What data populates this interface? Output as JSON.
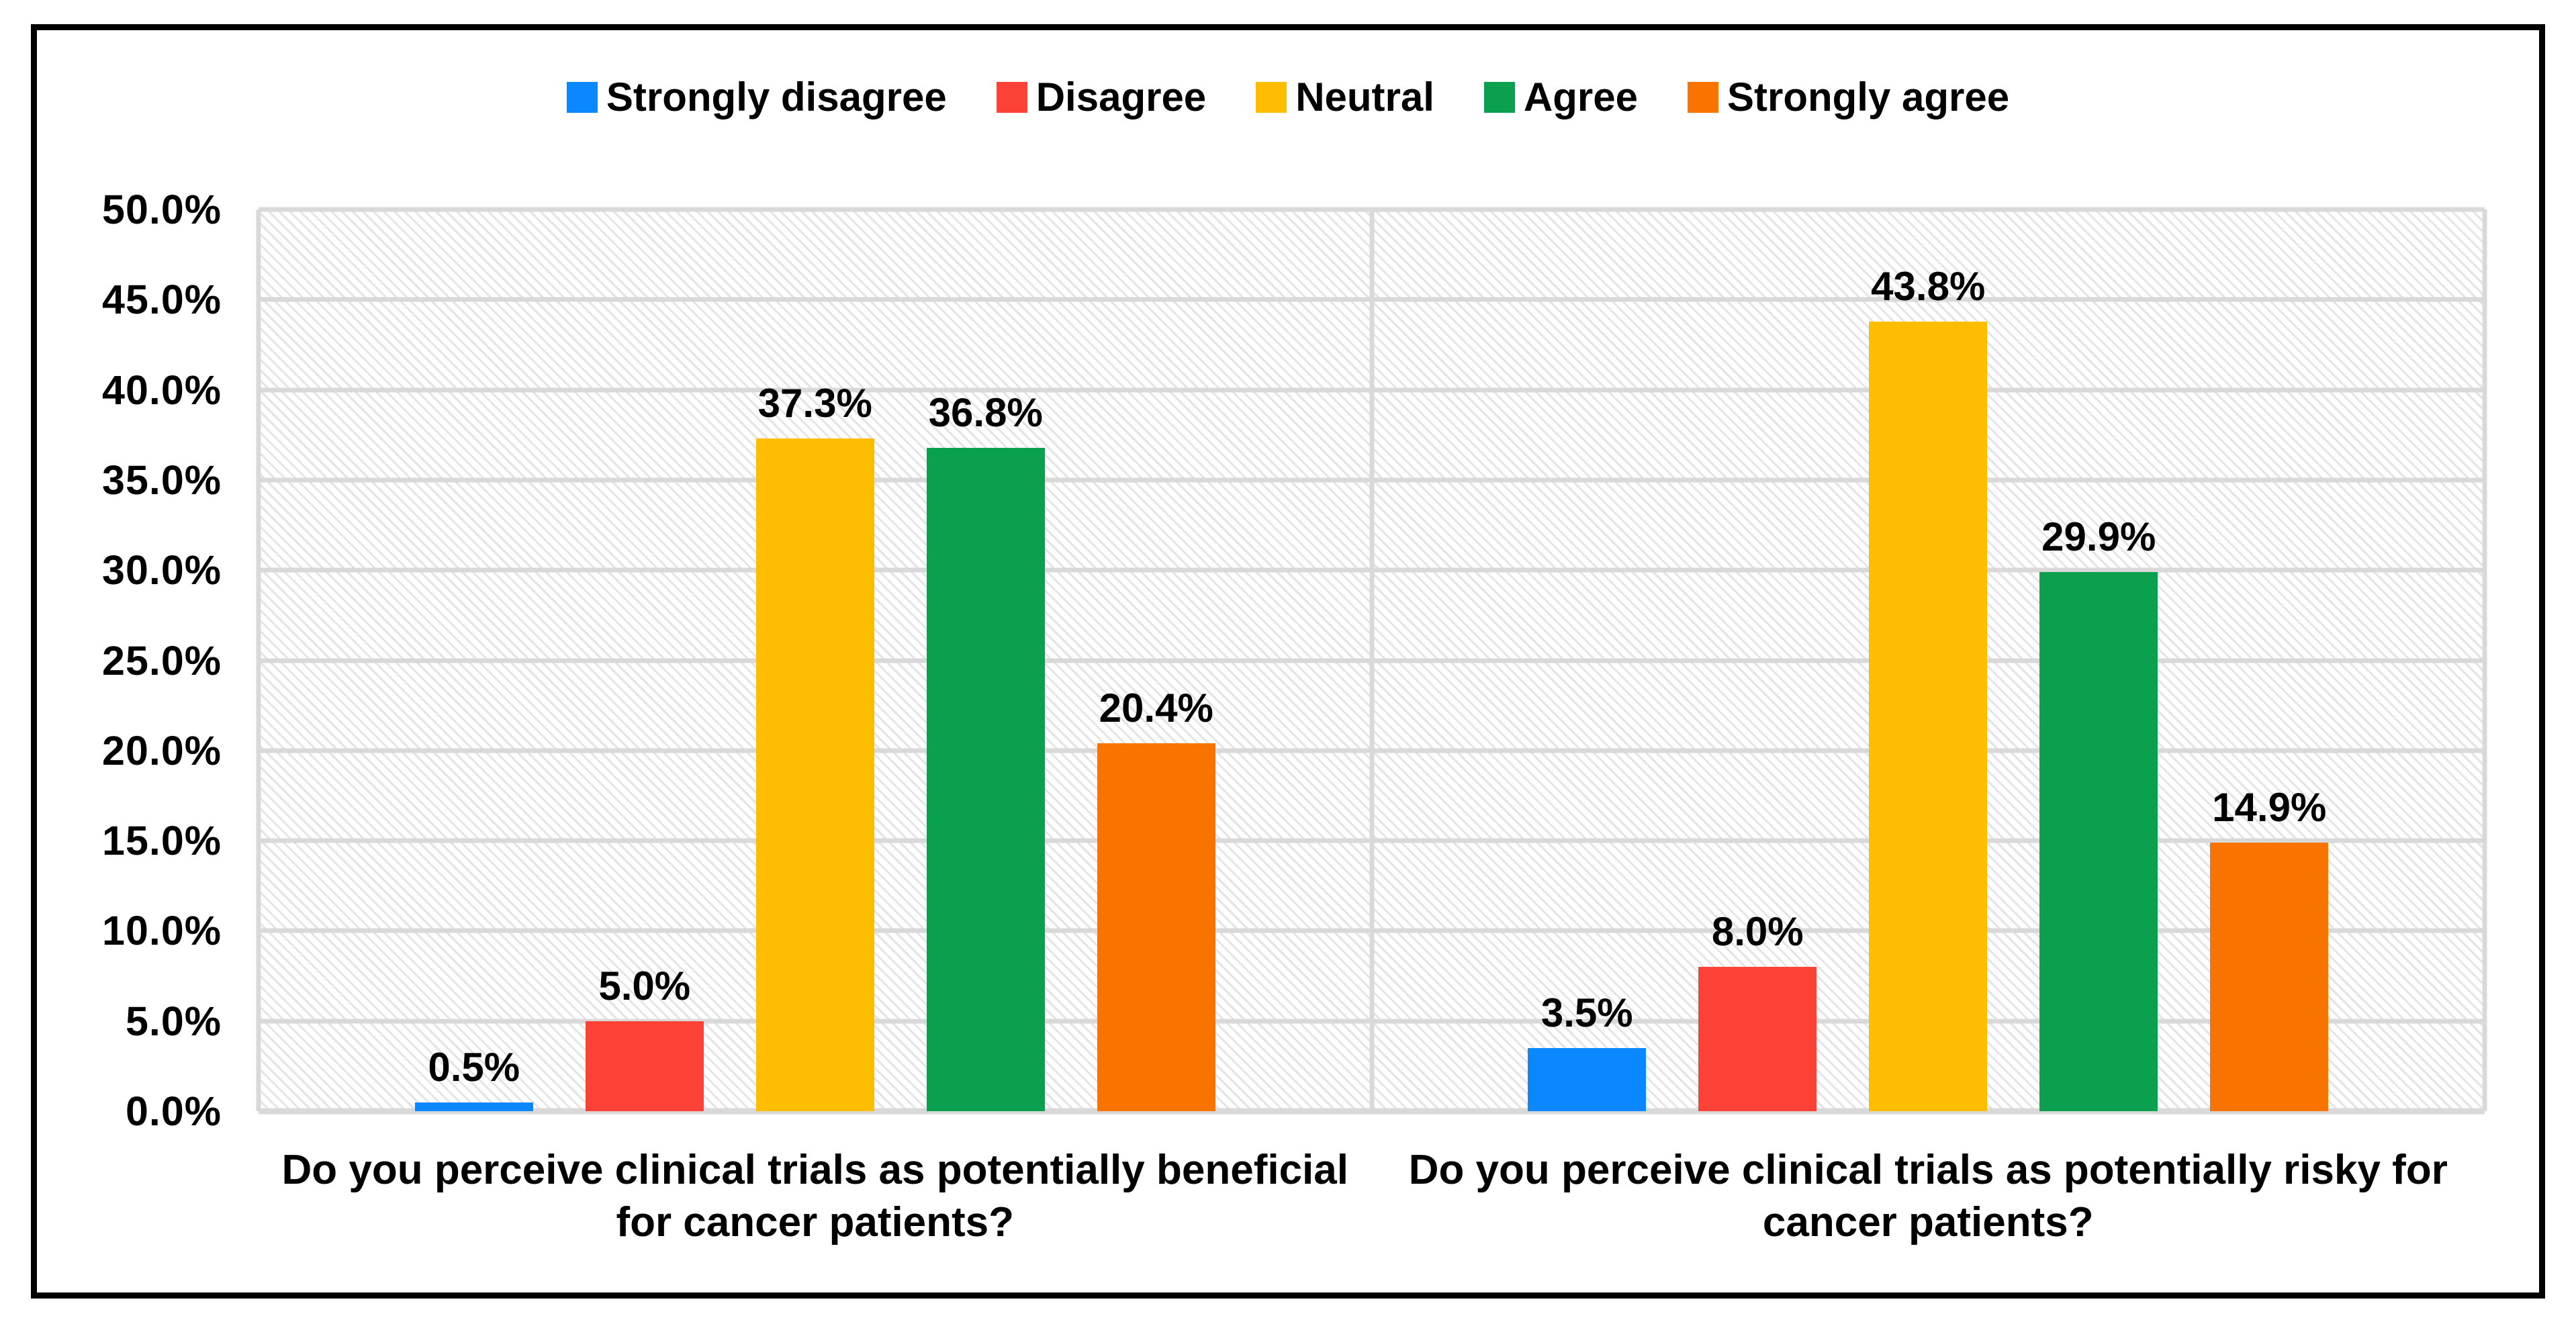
{
  "chart_data": {
    "type": "bar",
    "title": "",
    "categories": [
      "Do you perceive clinical trials as potentially beneficial for cancer patients?",
      "Do you perceive clinical trials as potentially risky for cancer patients?"
    ],
    "series": [
      {
        "name": "Strongly disagree",
        "color": "#0b87ff",
        "values": [
          0.5,
          3.5
        ],
        "labels": [
          "0.5%",
          "3.5%"
        ]
      },
      {
        "name": "Disagree",
        "color": "#fc4136",
        "values": [
          5.0,
          8.0
        ],
        "labels": [
          "5.0%",
          "8.0%"
        ]
      },
      {
        "name": "Neutral",
        "color": "#ffbd00",
        "values": [
          37.3,
          43.8
        ],
        "labels": [
          "37.3%",
          "43.8%"
        ]
      },
      {
        "name": "Agree",
        "color": "#0ba04e",
        "values": [
          36.8,
          29.9
        ],
        "labels": [
          "36.8%",
          "29.9%"
        ]
      },
      {
        "name": "Strongly agree",
        "color": "#f97300",
        "values": [
          20.4,
          14.9
        ],
        "labels": [
          "20.4%",
          "14.9%"
        ]
      }
    ],
    "ylim": [
      0,
      50
    ],
    "ytick_step": 5,
    "yticks": [
      "0.0%",
      "5.0%",
      "10.0%",
      "15.0%",
      "20.0%",
      "25.0%",
      "30.0%",
      "35.0%",
      "40.0%",
      "45.0%",
      "50.0%"
    ],
    "legend_position": "top",
    "grid": true,
    "background_pattern": "diagonal-hatch"
  },
  "colors": {
    "gridline": "#d9d9d9",
    "hatch_line": "#e4e4e4",
    "frame_border": "#000000",
    "text": "#000000"
  }
}
